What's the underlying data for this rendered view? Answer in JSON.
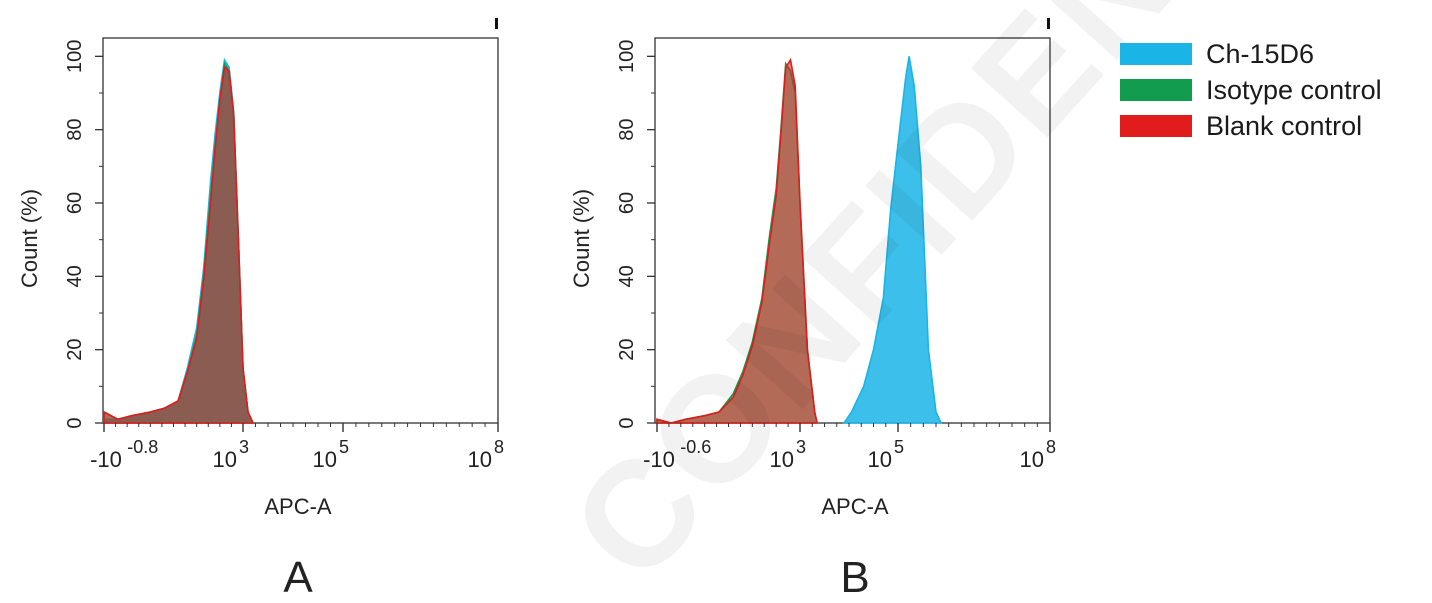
{
  "colors": {
    "Ch-15D6": "#1ab4e6",
    "Isotype control": "#119c4f",
    "Blank control": "#e01c1c",
    "overlap_fill": "#a45f4c"
  },
  "watermark": "CONFIDENTIAL",
  "legend": [
    {
      "name": "Ch-15D6"
    },
    {
      "name": "Isotype control"
    },
    {
      "name": "Blank control"
    }
  ],
  "chart_data": [
    {
      "type": "area",
      "panel_label": "A",
      "xlabel": "APC-A",
      "ylabel": "Count (%)",
      "xscale": "biexponential",
      "ylim": [
        0,
        105
      ],
      "yticks": [
        "0",
        "20",
        "40",
        "60",
        "80",
        "100"
      ],
      "xticks": [
        {
          "base": "-10",
          "exp": "-0.8"
        },
        {
          "base": "10",
          "exp": "3"
        },
        {
          "base": "10",
          "exp": "5"
        },
        {
          "base": "10",
          "exp": "8"
        }
      ],
      "series": [
        {
          "name": "Ch-15D6",
          "points": [
            [
              0.0,
              1
            ],
            [
              0.3,
              1
            ],
            [
              0.6,
              2
            ],
            [
              1.0,
              3
            ],
            [
              1.3,
              4
            ],
            [
              1.6,
              6
            ],
            [
              1.8,
              15
            ],
            [
              2.0,
              26
            ],
            [
              2.15,
              42
            ],
            [
              2.3,
              66
            ],
            [
              2.4,
              79
            ],
            [
              2.5,
              90
            ],
            [
              2.6,
              99
            ],
            [
              2.7,
              97
            ],
            [
              2.8,
              85
            ],
            [
              2.9,
              50
            ],
            [
              3.0,
              15
            ],
            [
              3.1,
              3
            ],
            [
              3.2,
              0
            ]
          ]
        },
        {
          "name": "Isotype control",
          "points": [
            [
              0.0,
              3
            ],
            [
              0.3,
              1
            ],
            [
              0.6,
              2
            ],
            [
              1.0,
              3
            ],
            [
              1.3,
              4
            ],
            [
              1.6,
              6
            ],
            [
              1.8,
              14
            ],
            [
              2.0,
              24
            ],
            [
              2.15,
              40
            ],
            [
              2.3,
              62
            ],
            [
              2.4,
              76
            ],
            [
              2.5,
              88
            ],
            [
              2.6,
              98
            ],
            [
              2.7,
              96
            ],
            [
              2.8,
              84
            ],
            [
              2.9,
              50
            ],
            [
              3.0,
              15
            ],
            [
              3.1,
              3
            ],
            [
              3.2,
              0
            ]
          ]
        },
        {
          "name": "Blank control",
          "points": [
            [
              0.0,
              3
            ],
            [
              0.3,
              1
            ],
            [
              0.6,
              2
            ],
            [
              1.0,
              3
            ],
            [
              1.3,
              4
            ],
            [
              1.6,
              6
            ],
            [
              1.8,
              14
            ],
            [
              2.0,
              23
            ],
            [
              2.15,
              39
            ],
            [
              2.3,
              60
            ],
            [
              2.4,
              75
            ],
            [
              2.5,
              88
            ],
            [
              2.6,
              97
            ],
            [
              2.7,
              96
            ],
            [
              2.8,
              84
            ],
            [
              2.9,
              50
            ],
            [
              3.0,
              15
            ],
            [
              3.1,
              3
            ],
            [
              3.2,
              0
            ]
          ]
        }
      ]
    },
    {
      "type": "area",
      "panel_label": "B",
      "xlabel": "APC-A",
      "ylabel": "Count (%)",
      "xscale": "biexponential",
      "ylim": [
        0,
        105
      ],
      "yticks": [
        "0",
        "20",
        "40",
        "60",
        "80",
        "100"
      ],
      "xticks": [
        {
          "base": "-10",
          "exp": "-0.6"
        },
        {
          "base": "10",
          "exp": "3"
        },
        {
          "base": "10",
          "exp": "5"
        },
        {
          "base": "10",
          "exp": "8"
        }
      ],
      "series": [
        {
          "name": "Ch-15D6",
          "points": [
            [
              3.9,
              0
            ],
            [
              4.05,
              3
            ],
            [
              4.3,
              10
            ],
            [
              4.5,
              20
            ],
            [
              4.7,
              34
            ],
            [
              4.85,
              58
            ],
            [
              4.95,
              70
            ],
            [
              5.05,
              82
            ],
            [
              5.15,
              94
            ],
            [
              5.22,
              100
            ],
            [
              5.32,
              92
            ],
            [
              5.45,
              70
            ],
            [
              5.6,
              20
            ],
            [
              5.75,
              3
            ],
            [
              5.85,
              0
            ]
          ]
        },
        {
          "name": "Isotype control",
          "points": [
            [
              0.0,
              1
            ],
            [
              0.3,
              0
            ],
            [
              0.6,
              1
            ],
            [
              1.0,
              2
            ],
            [
              1.3,
              3
            ],
            [
              1.6,
              8
            ],
            [
              1.8,
              14
            ],
            [
              2.0,
              22
            ],
            [
              2.2,
              34
            ],
            [
              2.35,
              50
            ],
            [
              2.5,
              64
            ],
            [
              2.6,
              80
            ],
            [
              2.7,
              98
            ],
            [
              2.8,
              96
            ],
            [
              2.9,
              90
            ],
            [
              3.0,
              60
            ],
            [
              3.15,
              20
            ],
            [
              3.3,
              3
            ],
            [
              3.35,
              0
            ]
          ]
        },
        {
          "name": "Blank control",
          "points": [
            [
              0.0,
              1
            ],
            [
              0.3,
              0
            ],
            [
              0.6,
              1
            ],
            [
              1.0,
              2
            ],
            [
              1.3,
              3
            ],
            [
              1.6,
              7
            ],
            [
              1.8,
              13
            ],
            [
              2.0,
              21
            ],
            [
              2.2,
              33
            ],
            [
              2.35,
              48
            ],
            [
              2.5,
              62
            ],
            [
              2.6,
              79
            ],
            [
              2.7,
              97
            ],
            [
              2.8,
              99
            ],
            [
              2.9,
              92
            ],
            [
              3.0,
              60
            ],
            [
              3.15,
              20
            ],
            [
              3.3,
              3
            ],
            [
              3.35,
              0
            ]
          ]
        }
      ]
    }
  ]
}
